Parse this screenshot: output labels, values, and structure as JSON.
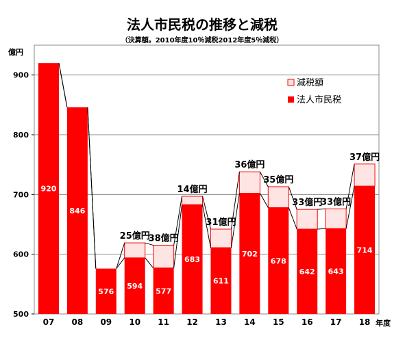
{
  "chart_data": {
    "type": "bar",
    "title": "法人市民税の推移と減税",
    "subtitle": "（決算額。2010年度10％減税2012年度5％減税）",
    "ylabel": "億円",
    "xlabel": "年度",
    "ylim": [
      500,
      950
    ],
    "yticks": [
      500,
      600,
      700,
      800,
      900
    ],
    "categories": [
      "07",
      "08",
      "09",
      "10",
      "11",
      "12",
      "13",
      "14",
      "15",
      "16",
      "17",
      "18"
    ],
    "series": [
      {
        "name": "法人市民税",
        "values": [
          920,
          846,
          576,
          594,
          577,
          683,
          611,
          702,
          678,
          642,
          643,
          714
        ],
        "color": "#ff0000"
      },
      {
        "name": "減税額",
        "values": [
          0,
          0,
          0,
          25,
          38,
          14,
          31,
          36,
          35,
          33,
          33,
          37
        ],
        "color": "#ffe4e4"
      }
    ],
    "value_labels": [
      "920",
      "846",
      "576",
      "594",
      "577",
      "683",
      "611",
      "702",
      "678",
      "642",
      "643",
      "714"
    ],
    "cut_labels": [
      "",
      "",
      "",
      "25億円",
      "38億円",
      "14億円",
      "31億円",
      "36億円",
      "35億円",
      "33億円",
      "33億円",
      "37億円"
    ],
    "legend": [
      "減税額",
      "法人市民税"
    ],
    "grid": true
  }
}
